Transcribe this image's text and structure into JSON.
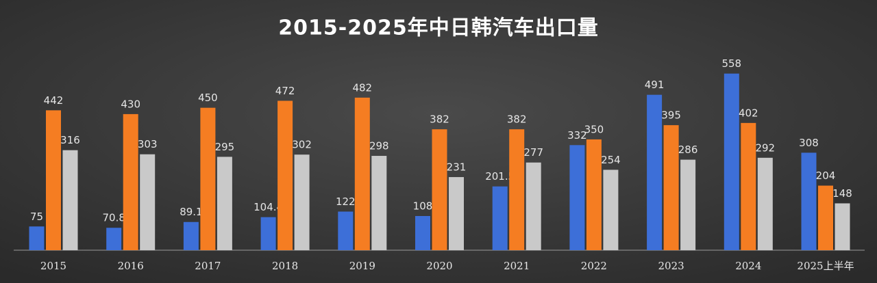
{
  "chart_data": {
    "type": "bar",
    "title": "2015-2025年中日韩汽车出口量",
    "categories": [
      "2015",
      "2016",
      "2017",
      "2018",
      "2019",
      "2020",
      "2021",
      "2022",
      "2023",
      "2024",
      "2025上半年"
    ],
    "series": [
      {
        "color": "#3d6fd8",
        "values": [
          75,
          70.8,
          89.1,
          104.4,
          122,
          108,
          201.5,
          332,
          491,
          558,
          308
        ]
      },
      {
        "color": "#f57d22",
        "values": [
          442,
          430,
          450,
          472,
          482,
          382,
          382,
          350,
          395,
          402,
          204
        ]
      },
      {
        "color": "#c9c9c9",
        "values": [
          316,
          303,
          295,
          302,
          298,
          231,
          277,
          254,
          286,
          292,
          148
        ]
      }
    ]
  }
}
